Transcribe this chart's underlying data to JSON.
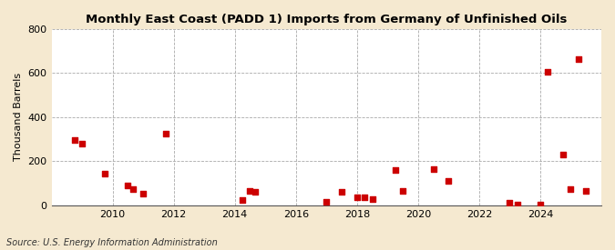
{
  "title": "Monthly East Coast (PADD 1) Imports from Germany of Unfinished Oils",
  "ylabel": "Thousand Barrels",
  "source": "Source: U.S. Energy Information Administration",
  "background_color": "#f5e9d0",
  "plot_bg_color": "#ffffff",
  "marker_color": "#cc0000",
  "marker_size": 18,
  "ylim": [
    0,
    800
  ],
  "yticks": [
    0,
    200,
    400,
    600,
    800
  ],
  "data_points": [
    [
      2008.75,
      295
    ],
    [
      2009.0,
      280
    ],
    [
      2009.75,
      145
    ],
    [
      2010.5,
      90
    ],
    [
      2010.67,
      75
    ],
    [
      2011.0,
      55
    ],
    [
      2011.75,
      325
    ],
    [
      2014.25,
      25
    ],
    [
      2014.5,
      65
    ],
    [
      2014.67,
      60
    ],
    [
      2017.0,
      15
    ],
    [
      2017.5,
      60
    ],
    [
      2018.0,
      35
    ],
    [
      2018.25,
      35
    ],
    [
      2018.5,
      30
    ],
    [
      2019.25,
      160
    ],
    [
      2019.5,
      65
    ],
    [
      2020.5,
      165
    ],
    [
      2021.0,
      110
    ],
    [
      2023.0,
      10
    ],
    [
      2023.25,
      5
    ],
    [
      2024.0,
      5
    ],
    [
      2024.25,
      605
    ],
    [
      2024.75,
      230
    ],
    [
      2025.0,
      75
    ],
    [
      2025.25,
      665
    ],
    [
      2025.5,
      65
    ]
  ],
  "xlim": [
    2008.0,
    2026.0
  ],
  "xticks": [
    2010,
    2012,
    2014,
    2016,
    2018,
    2020,
    2022,
    2024
  ]
}
